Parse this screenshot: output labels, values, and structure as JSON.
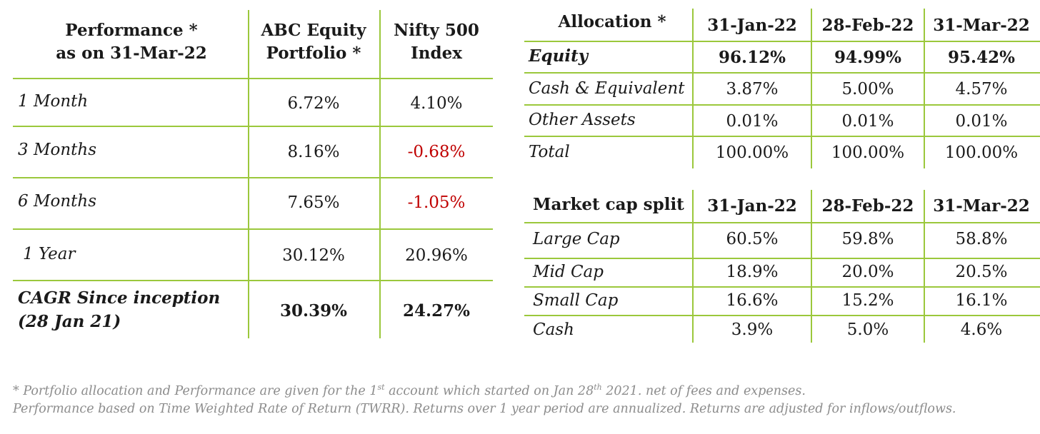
{
  "performance": {
    "header": {
      "line1": "Performance *",
      "line2": "as on 31-Mar-22",
      "abc1": "ABC Equity",
      "abc2": "Portfolio *",
      "nifty1": "Nifty 500",
      "nifty2": "Index"
    },
    "rows": [
      {
        "period": "1 Month",
        "abc": "6.72%",
        "nifty": "4.10%"
      },
      {
        "period": "3 Months",
        "abc": "8.16%",
        "nifty": "-0.68%"
      },
      {
        "period": "6 Months",
        "abc": "7.65%",
        "nifty": "-1.05%"
      },
      {
        "period": "1 Year",
        "abc": "30.12%",
        "nifty": "20.96%"
      }
    ],
    "cagr": {
      "line1": "CAGR Since inception",
      "line2": "(28 Jan 21)",
      "abc": "30.39%",
      "nifty": "24.27%"
    }
  },
  "allocation": {
    "header": {
      "label": "Allocation *",
      "d1": "31-Jan-22",
      "d2": "28-Feb-22",
      "d3": "31-Mar-22"
    },
    "rows": [
      {
        "label": "Equity",
        "v1": "96.12%",
        "v2": "94.99%",
        "v3": "95.42%"
      },
      {
        "label": "Cash & Equivalent",
        "v1": "3.87%",
        "v2": "5.00%",
        "v3": "4.57%"
      },
      {
        "label": "Other Assets",
        "v1": "0.01%",
        "v2": "0.01%",
        "v3": "0.01%"
      },
      {
        "label": "Total",
        "v1": "100.00%",
        "v2": "100.00%",
        "v3": "100.00%"
      }
    ]
  },
  "market_cap": {
    "header": {
      "label": "Market cap split",
      "d1": "31-Jan-22",
      "d2": "28-Feb-22",
      "d3": "31-Mar-22"
    },
    "rows": [
      {
        "label": "Large Cap",
        "v1": "60.5%",
        "v2": "59.8%",
        "v3": "58.8%"
      },
      {
        "label": "Mid Cap",
        "v1": "18.9%",
        "v2": "20.0%",
        "v3": "20.5%"
      },
      {
        "label": "Small Cap",
        "v1": "16.6%",
        "v2": "15.2%",
        "v3": "16.1%"
      },
      {
        "label": "Cash",
        "v1": "3.9%",
        "v2": "5.0%",
        "v3": "4.6%"
      }
    ]
  },
  "footnote": {
    "l1a": "* Portfolio allocation and Performance are given for the 1",
    "l1sup1": "st",
    "l1b": " account which started on Jan 28",
    "l1sup2": "th",
    "l1c": " 2021.  net of fees and expenses.",
    "line2": "Performance based on Time Weighted Rate of Return (TWRR). Returns over 1 year period are annualized. Returns are adjusted for inflows/outflows."
  },
  "colors": {
    "grid": "#9bc83c",
    "negative": "#c00000",
    "footnote": "#8c8c8c"
  }
}
